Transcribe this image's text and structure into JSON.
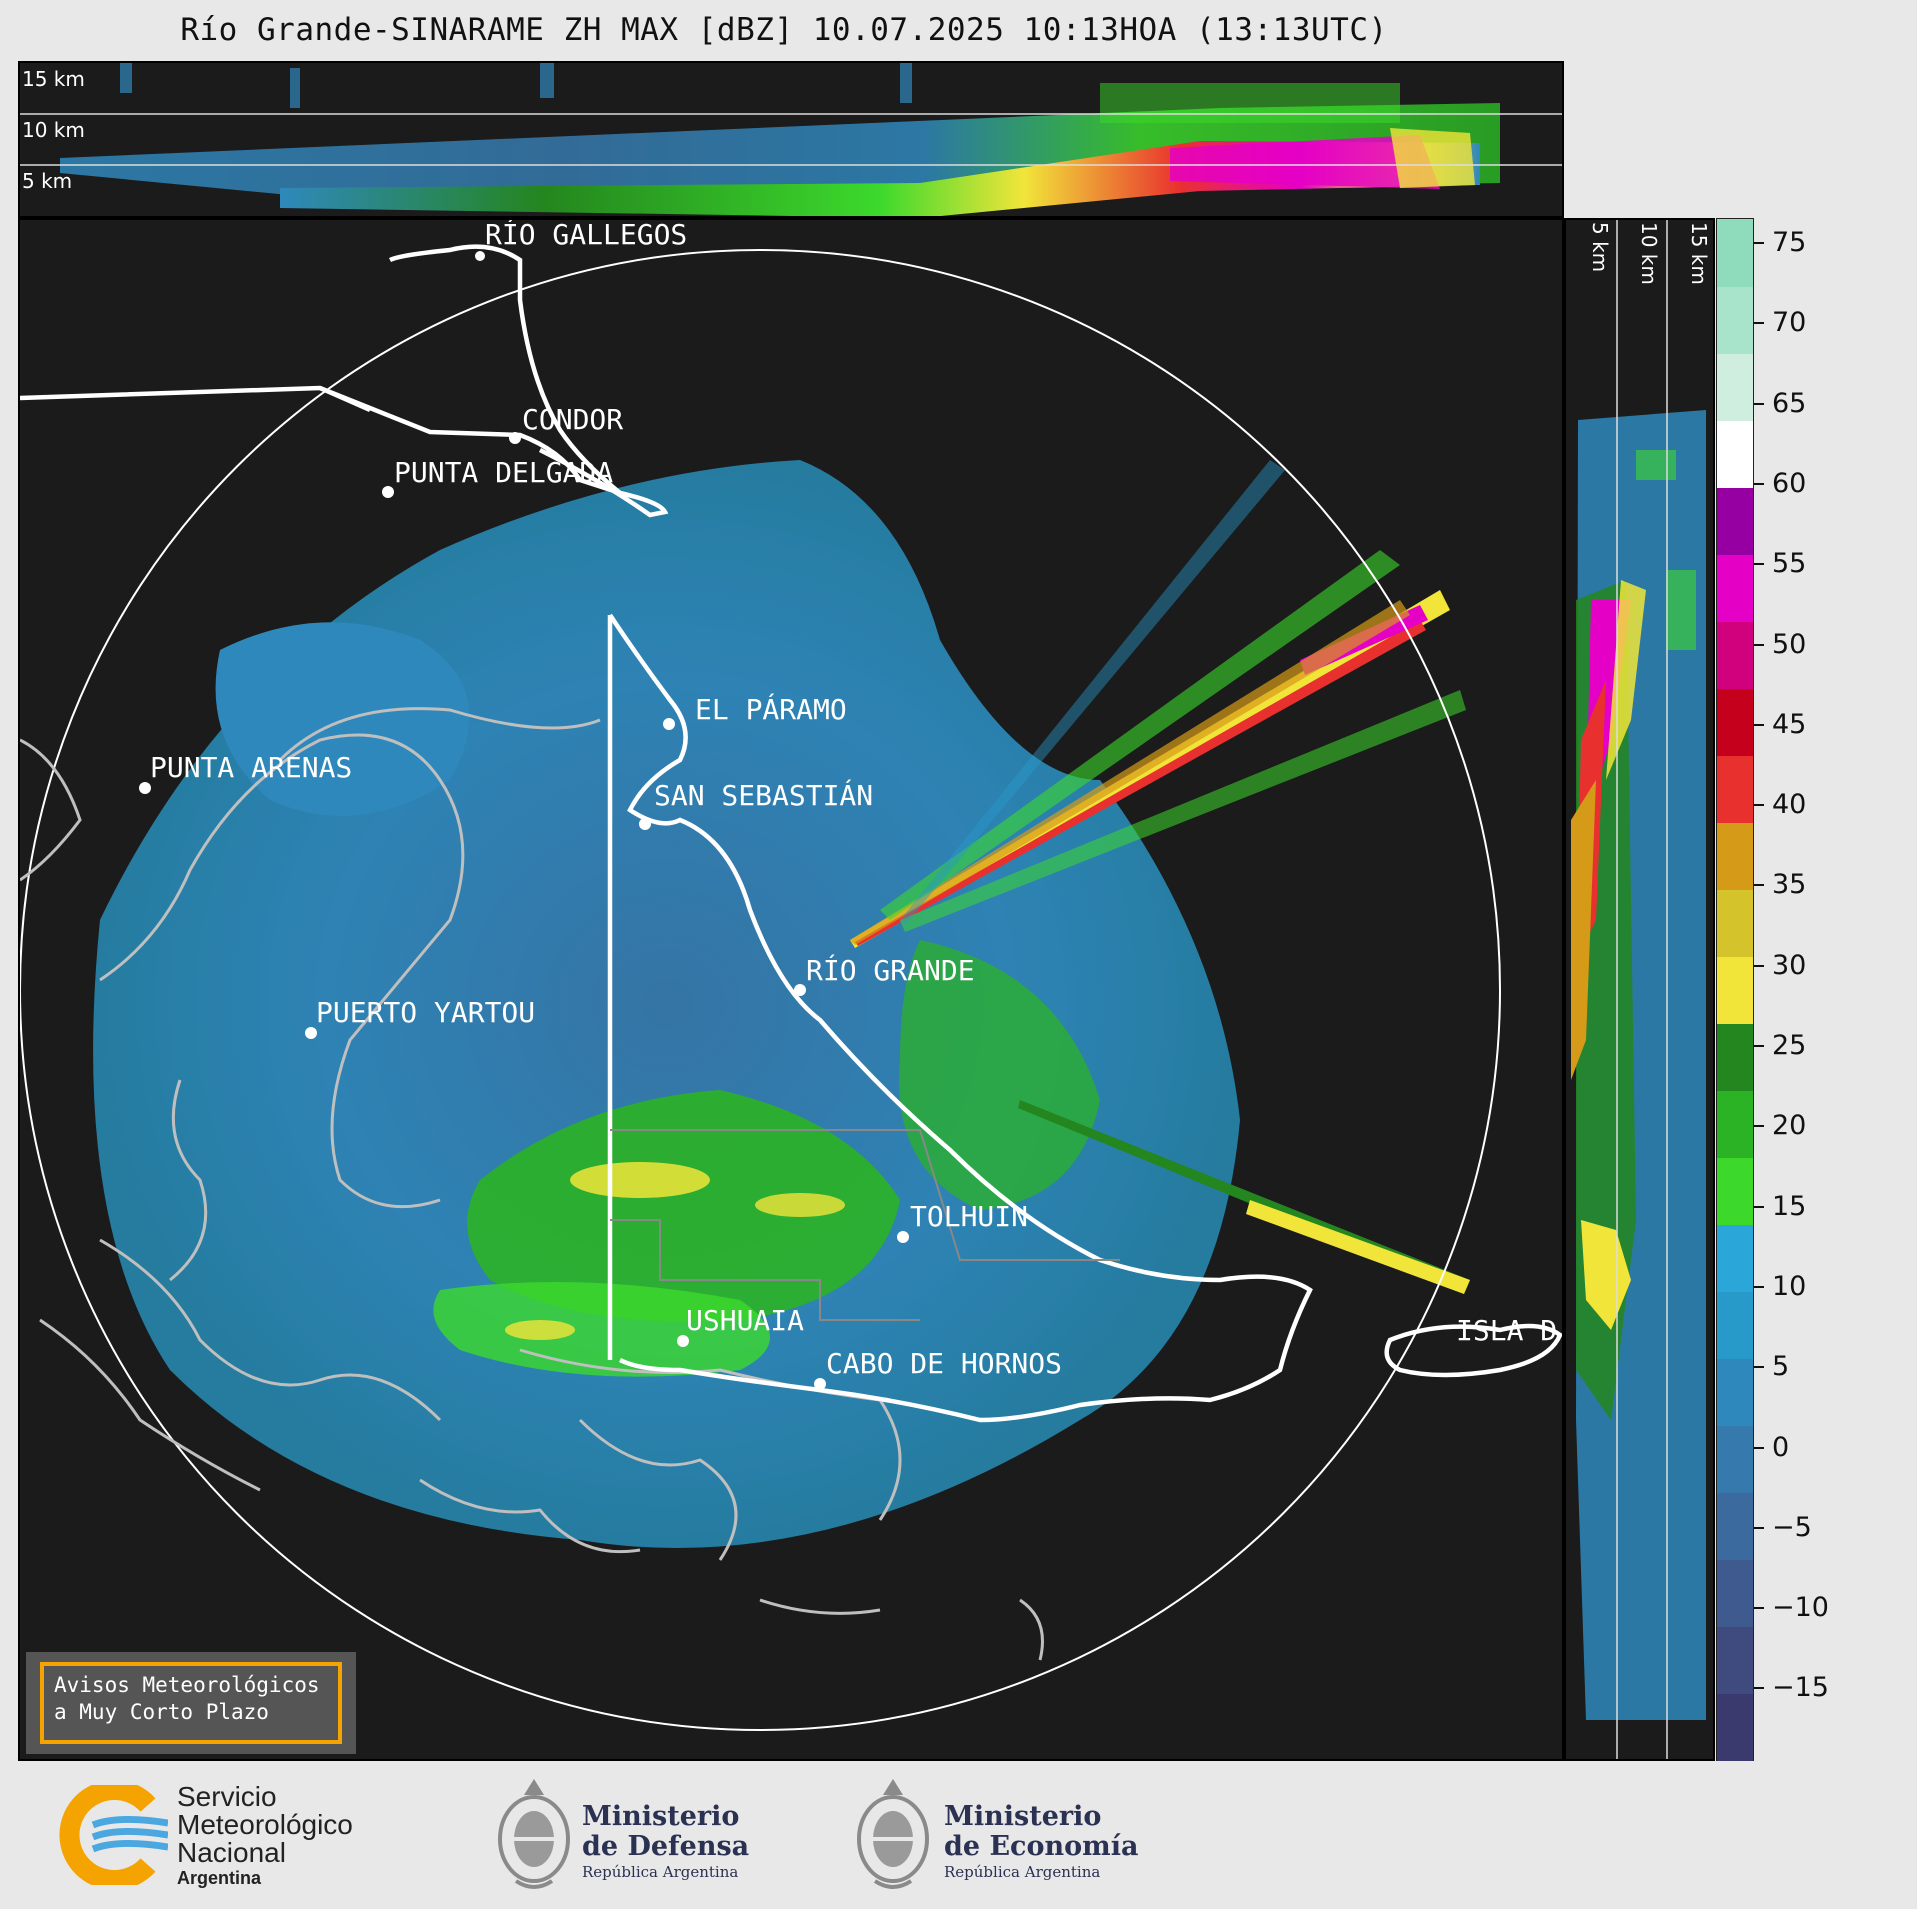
{
  "header": {
    "title": "Río Grande-SINARAME ZH MAX [dBZ] 10.07.2025 10:13HOA (13:13UTC)"
  },
  "top_section": {
    "levels": [
      "15 km",
      "10 km",
      "5 km"
    ]
  },
  "side_section": {
    "levels": [
      "5 km",
      "10 km",
      "15 km"
    ]
  },
  "map": {
    "cities": [
      {
        "name": "RÍO GALLEGOS"
      },
      {
        "name": "CONDOR"
      },
      {
        "name": "PUNTA DELGADA"
      },
      {
        "name": "EL PÁRAMO"
      },
      {
        "name": "SAN SEBASTIÁN"
      },
      {
        "name": "PUNTA ARENAS"
      },
      {
        "name": "RÍO GRANDE"
      },
      {
        "name": "PUERTO YARTOU"
      },
      {
        "name": "TOLHUIN"
      },
      {
        "name": "USHUAIA"
      },
      {
        "name": "CABO DE HORNOS"
      },
      {
        "name": "ISLA D"
      }
    ]
  },
  "colorbar": {
    "unit": "dBZ",
    "ticks": [
      "75",
      "70",
      "65",
      "60",
      "55",
      "50",
      "45",
      "40",
      "35",
      "30",
      "25",
      "20",
      "15",
      "10",
      "5",
      "0",
      "−5",
      "−10",
      "−15"
    ],
    "colors": [
      "#3a3a6e",
      "#3f4a7e",
      "#3e5a8e",
      "#3b6a9e",
      "#3679ac",
      "#2f88bc",
      "#289ac9",
      "#2aa7d8",
      "#3cd92c",
      "#2bb225",
      "#24861e",
      "#f1e53a",
      "#d4c32a",
      "#d59a18",
      "#e8312f",
      "#c5001d",
      "#d1007c",
      "#e500c6",
      "#9600a3",
      "#ffffff",
      "#cfeee0",
      "#a8e4cb",
      "#8fdcbd"
    ]
  },
  "legend": {
    "line1": "Avisos Meteorológicos",
    "line2": "a Muy Corto Plazo"
  },
  "footer": {
    "smn": {
      "line1": "Servicio",
      "line2": "Meteorológico",
      "line3": "Nacional",
      "line4": "Argentina"
    },
    "defensa": {
      "line1": "Ministerio",
      "line2": "de Defensa",
      "line3": "República Argentina"
    },
    "economia": {
      "line1": "Ministerio",
      "line2": "de Economía",
      "line3": "República Argentina"
    }
  }
}
